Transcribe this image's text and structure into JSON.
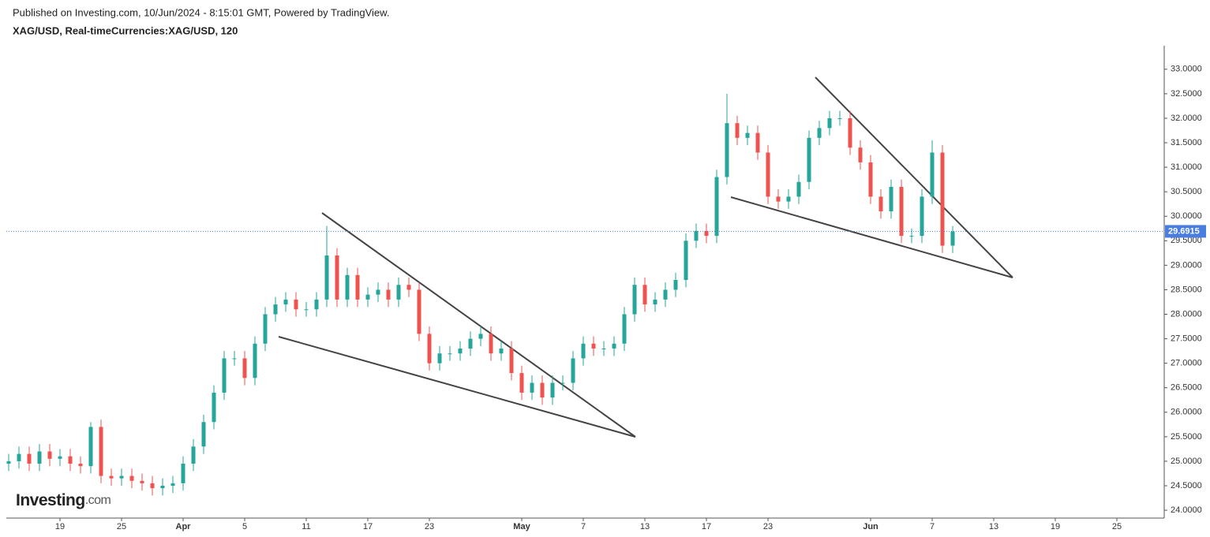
{
  "header": {
    "published": "Published on Investing.com, 10/Jun/2024 - 8:15:01 GMT, Powered by TradingView.",
    "symbol": "XAG/USD, Real-timeCurrencies:XAG/USD, 120"
  },
  "watermark": {
    "brand": "Investing",
    "suffix": ".com"
  },
  "chart_data": {
    "type": "candlestick",
    "up_color": "#26a69a",
    "down_color": "#ef5350",
    "last_price": {
      "value": 29.6915,
      "label": "29.6915"
    },
    "last_price_color": "#4a7de0",
    "categories": [
      null,
      null,
      null,
      null,
      null,
      "19",
      null,
      null,
      null,
      null,
      null,
      "25",
      null,
      null,
      null,
      null,
      null,
      "Apr",
      null,
      null,
      null,
      null,
      null,
      "5",
      null,
      null,
      null,
      null,
      null,
      "11",
      null,
      null,
      null,
      null,
      null,
      "17",
      null,
      null,
      null,
      null,
      null,
      "23",
      null,
      null,
      null,
      null,
      null,
      null,
      null,
      null,
      "May",
      null,
      null,
      null,
      null,
      null,
      "7",
      null,
      null,
      null,
      null,
      null,
      "13",
      null,
      null,
      null,
      null,
      null,
      "17",
      null,
      null,
      null,
      null,
      null,
      "23",
      null,
      null,
      null,
      null,
      null,
      null,
      null,
      null,
      null,
      "Jun",
      null,
      null,
      null,
      null,
      null,
      "7",
      null,
      null,
      null,
      null,
      null,
      "13",
      null,
      null,
      null,
      null,
      null,
      "19",
      null,
      null,
      null,
      null,
      null,
      "25",
      null,
      null,
      null,
      null
    ],
    "ohlc": [
      [
        24.95,
        25.15,
        24.8,
        25.0
      ],
      [
        25.0,
        25.3,
        24.85,
        25.15
      ],
      [
        25.15,
        25.3,
        24.8,
        24.95
      ],
      [
        24.95,
        25.35,
        24.8,
        25.2
      ],
      [
        25.2,
        25.35,
        24.9,
        25.05
      ],
      [
        25.05,
        25.25,
        24.9,
        25.1
      ],
      [
        25.1,
        25.25,
        24.8,
        24.95
      ],
      [
        24.95,
        25.1,
        24.75,
        24.9
      ],
      [
        24.9,
        25.8,
        24.75,
        25.7
      ],
      [
        25.7,
        25.85,
        24.55,
        24.7
      ],
      [
        24.7,
        24.85,
        24.5,
        24.65
      ],
      [
        24.65,
        24.85,
        24.5,
        24.7
      ],
      [
        24.7,
        24.85,
        24.45,
        24.6
      ],
      [
        24.6,
        24.75,
        24.4,
        24.55
      ],
      [
        24.55,
        24.7,
        24.3,
        24.45
      ],
      [
        24.45,
        24.65,
        24.3,
        24.5
      ],
      [
        24.5,
        24.7,
        24.35,
        24.55
      ],
      [
        24.55,
        25.1,
        24.4,
        24.95
      ],
      [
        24.95,
        25.45,
        24.8,
        25.3
      ],
      [
        25.3,
        25.95,
        25.15,
        25.8
      ],
      [
        25.8,
        26.55,
        25.65,
        26.4
      ],
      [
        26.4,
        27.25,
        26.25,
        27.1
      ],
      [
        27.1,
        27.25,
        26.95,
        27.1
      ],
      [
        27.1,
        27.25,
        26.55,
        26.7
      ],
      [
        26.7,
        27.55,
        26.55,
        27.4
      ],
      [
        27.4,
        28.15,
        27.25,
        28.0
      ],
      [
        28.0,
        28.35,
        27.85,
        28.2
      ],
      [
        28.2,
        28.45,
        28.05,
        28.3
      ],
      [
        28.3,
        28.45,
        27.95,
        28.1
      ],
      [
        28.1,
        28.25,
        27.95,
        28.1
      ],
      [
        28.1,
        28.45,
        27.95,
        28.3
      ],
      [
        28.3,
        29.8,
        28.15,
        29.2
      ],
      [
        29.2,
        29.35,
        28.15,
        28.3
      ],
      [
        28.3,
        28.95,
        28.15,
        28.8
      ],
      [
        28.8,
        28.95,
        28.15,
        28.3
      ],
      [
        28.3,
        28.55,
        28.15,
        28.4
      ],
      [
        28.4,
        28.65,
        28.25,
        28.5
      ],
      [
        28.5,
        28.65,
        28.15,
        28.3
      ],
      [
        28.3,
        28.75,
        28.15,
        28.6
      ],
      [
        28.6,
        28.75,
        28.35,
        28.5
      ],
      [
        28.5,
        28.65,
        27.45,
        27.6
      ],
      [
        27.6,
        27.75,
        26.85,
        27.0
      ],
      [
        27.0,
        27.35,
        26.85,
        27.2
      ],
      [
        27.2,
        27.35,
        27.05,
        27.2
      ],
      [
        27.2,
        27.45,
        27.05,
        27.3
      ],
      [
        27.3,
        27.65,
        27.15,
        27.5
      ],
      [
        27.5,
        27.75,
        27.35,
        27.6
      ],
      [
        27.6,
        27.75,
        27.05,
        27.2
      ],
      [
        27.2,
        27.45,
        27.05,
        27.3
      ],
      [
        27.3,
        27.45,
        26.65,
        26.8
      ],
      [
        26.8,
        26.95,
        26.25,
        26.4
      ],
      [
        26.4,
        26.75,
        26.25,
        26.6
      ],
      [
        26.6,
        26.75,
        26.15,
        26.3
      ],
      [
        26.3,
        26.75,
        26.15,
        26.6
      ],
      [
        26.6,
        26.75,
        26.45,
        26.6
      ],
      [
        26.6,
        27.25,
        26.45,
        27.1
      ],
      [
        27.1,
        27.55,
        26.95,
        27.4
      ],
      [
        27.4,
        27.55,
        27.15,
        27.3
      ],
      [
        27.3,
        27.45,
        27.15,
        27.3
      ],
      [
        27.3,
        27.55,
        27.15,
        27.4
      ],
      [
        27.4,
        28.15,
        27.25,
        28.0
      ],
      [
        28.0,
        28.75,
        27.85,
        28.6
      ],
      [
        28.6,
        28.75,
        28.05,
        28.2
      ],
      [
        28.2,
        28.45,
        28.05,
        28.3
      ],
      [
        28.3,
        28.65,
        28.15,
        28.5
      ],
      [
        28.5,
        28.85,
        28.35,
        28.7
      ],
      [
        28.7,
        29.65,
        28.55,
        29.5
      ],
      [
        29.5,
        29.85,
        29.35,
        29.7
      ],
      [
        29.7,
        29.85,
        29.45,
        29.6
      ],
      [
        29.6,
        30.95,
        29.45,
        30.8
      ],
      [
        30.8,
        32.5,
        30.65,
        31.9
      ],
      [
        31.9,
        32.05,
        31.45,
        31.6
      ],
      [
        31.6,
        31.85,
        31.45,
        31.7
      ],
      [
        31.7,
        31.85,
        31.15,
        31.3
      ],
      [
        31.3,
        31.45,
        30.25,
        30.4
      ],
      [
        30.4,
        30.55,
        30.15,
        30.3
      ],
      [
        30.3,
        30.55,
        30.15,
        30.4
      ],
      [
        30.4,
        30.85,
        30.25,
        30.7
      ],
      [
        30.7,
        31.75,
        30.55,
        31.6
      ],
      [
        31.6,
        31.95,
        31.45,
        31.8
      ],
      [
        31.8,
        32.15,
        31.65,
        32.0
      ],
      [
        32.0,
        32.15,
        31.85,
        32.0
      ],
      [
        32.0,
        32.15,
        31.25,
        31.4
      ],
      [
        31.4,
        31.55,
        30.95,
        31.1
      ],
      [
        31.1,
        31.25,
        30.25,
        30.4
      ],
      [
        30.4,
        30.55,
        29.95,
        30.1
      ],
      [
        30.1,
        30.75,
        29.95,
        30.6
      ],
      [
        30.6,
        30.75,
        29.45,
        29.6
      ],
      [
        29.6,
        29.75,
        29.45,
        29.6
      ],
      [
        29.6,
        30.55,
        29.45,
        30.4
      ],
      [
        30.4,
        31.55,
        30.25,
        31.3
      ],
      [
        31.3,
        31.45,
        29.25,
        29.4
      ],
      [
        29.4,
        29.8,
        29.25,
        29.69
      ],
      null,
      null,
      null,
      null,
      null,
      null,
      null,
      null,
      null,
      null,
      null,
      null,
      null,
      null,
      null,
      null,
      null,
      null,
      null,
      null
    ],
    "ylim": [
      23.84,
      33.48
    ],
    "yticks": [
      {
        "value": 24,
        "label": "24.0000"
      },
      {
        "value": 24.5,
        "label": "24.5000"
      },
      {
        "value": 25,
        "label": "25.0000"
      },
      {
        "value": 25.5,
        "label": "25.5000"
      },
      {
        "value": 26,
        "label": "26.0000"
      },
      {
        "value": 26.5,
        "label": "26.5000"
      },
      {
        "value": 27,
        "label": "27.0000"
      },
      {
        "value": 27.5,
        "label": "27.5000"
      },
      {
        "value": 28,
        "label": "28.0000"
      },
      {
        "value": 28.5,
        "label": "28.5000"
      },
      {
        "value": 29,
        "label": "29.0000"
      },
      {
        "value": 29.5,
        "label": "29.5000"
      },
      {
        "value": 30,
        "label": "30.0000"
      },
      {
        "value": 30.5,
        "label": "30.5000"
      },
      {
        "value": 31,
        "label": "31.0000"
      },
      {
        "value": 31.5,
        "label": "31.5000"
      },
      {
        "value": 32,
        "label": "32.0000"
      },
      {
        "value": 32.5,
        "label": "32.5000"
      },
      {
        "value": 33,
        "label": "33.0000"
      }
    ]
  }
}
